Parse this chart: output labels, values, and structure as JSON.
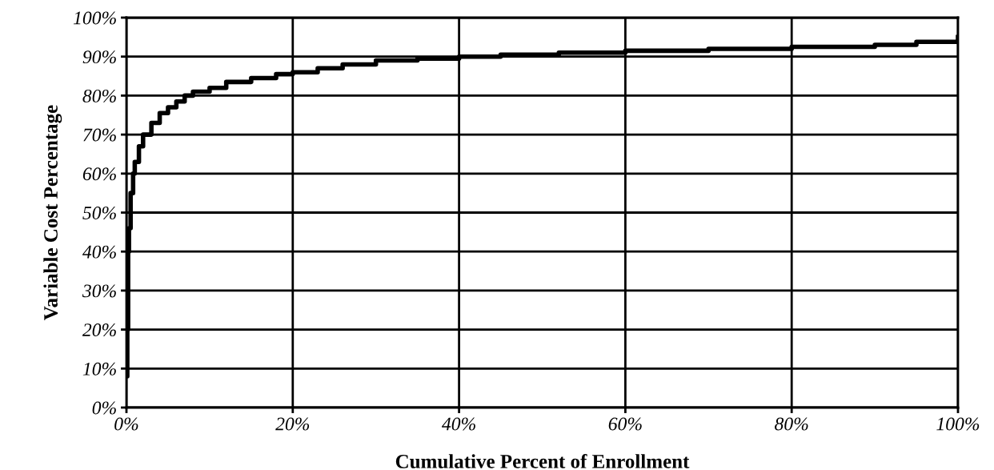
{
  "chart_data": {
    "type": "step",
    "xlabel": "Cumulative Percent of Enrollment",
    "ylabel": "Variable Cost Percentage",
    "x": [
      0,
      0.1,
      0.2,
      0.3,
      0.5,
      0.8,
      1,
      1.5,
      2,
      3,
      4,
      5,
      6,
      7,
      8,
      10,
      12,
      15,
      18,
      20,
      23,
      26,
      30,
      35,
      40,
      45,
      52,
      60,
      70,
      80,
      90,
      95,
      100
    ],
    "series": [
      {
        "color": "#000000",
        "values": [
          8,
          20,
          40,
          46,
          55,
          60,
          63,
          67,
          70,
          73,
          75.5,
          77,
          78.5,
          80,
          81,
          82,
          83.5,
          84.5,
          85.5,
          86,
          87,
          88,
          89,
          89.5,
          90,
          90.5,
          91,
          91.5,
          92,
          92.5,
          93,
          93.8,
          95
        ]
      }
    ],
    "xlim": [
      0,
      100
    ],
    "ylim": [
      0,
      100
    ],
    "xticks": [
      {
        "value": 0,
        "label": "0%"
      },
      {
        "value": 20,
        "label": "20%"
      },
      {
        "value": 40,
        "label": "40%"
      },
      {
        "value": 60,
        "label": "60%"
      },
      {
        "value": 80,
        "label": "80%"
      },
      {
        "value": 100,
        "label": "100%"
      }
    ],
    "yticks": [
      {
        "value": 0,
        "label": "0%"
      },
      {
        "value": 10,
        "label": "10%"
      },
      {
        "value": 20,
        "label": "20%"
      },
      {
        "value": 30,
        "label": "30%"
      },
      {
        "value": 40,
        "label": "40%"
      },
      {
        "value": 50,
        "label": "50%"
      },
      {
        "value": 60,
        "label": "60%"
      },
      {
        "value": 70,
        "label": "70%"
      },
      {
        "value": 80,
        "label": "80%"
      },
      {
        "value": 90,
        "label": "90%"
      },
      {
        "value": 100,
        "label": "100%"
      }
    ],
    "grid": true,
    "marker": "none",
    "line_style": "solid"
  }
}
